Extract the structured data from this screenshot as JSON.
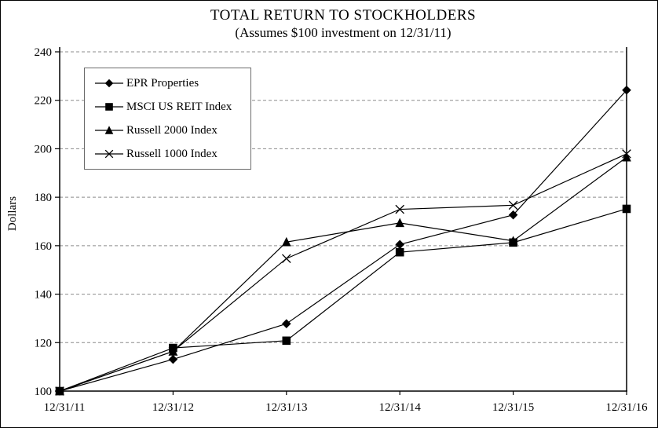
{
  "window": {
    "background_color": "#ffffff",
    "border_color": "#000000"
  },
  "chart_data": {
    "type": "line",
    "title": "TOTAL RETURN TO STOCKHOLDERS",
    "subtitle": "(Assumes $100 investment on 12/31/11)",
    "ylabel": "Dollars",
    "xlabel": "",
    "categories": [
      "12/31/11",
      "12/31/12",
      "12/31/13",
      "12/31/14",
      "12/31/15",
      "12/31/16"
    ],
    "y_ticks": [
      100,
      120,
      140,
      160,
      180,
      200,
      220,
      240
    ],
    "ylim": [
      100,
      240
    ],
    "grid": "horizontal-dashed",
    "legend_position": "upper-left-inside",
    "gridline_color": "#8c8c8c",
    "axis_color": "#000000",
    "series": [
      {
        "name": "EPR Properties",
        "marker": "diamond",
        "color": "#000000",
        "values": [
          100,
          113.1,
          127.8,
          160.5,
          172.7,
          224.2
        ]
      },
      {
        "name": "MSCI US REIT Index",
        "marker": "square",
        "color": "#000000",
        "values": [
          100,
          117.8,
          120.8,
          157.3,
          161.3,
          175.2
        ]
      },
      {
        "name": "Russell 2000 Index",
        "marker": "triangle",
        "color": "#000000",
        "values": [
          100,
          116.4,
          161.5,
          169.4,
          162.0,
          196.5
        ]
      },
      {
        "name": "Russell 1000 Index",
        "marker": "x",
        "color": "#000000",
        "values": [
          100,
          116.4,
          154.7,
          175.0,
          176.7,
          197.9
        ]
      }
    ]
  }
}
